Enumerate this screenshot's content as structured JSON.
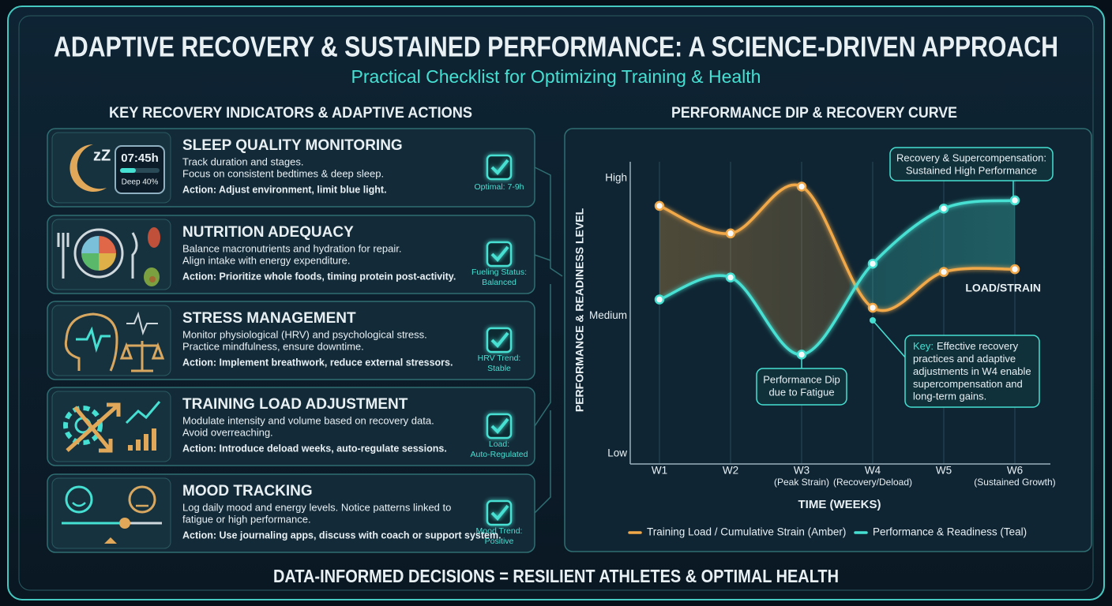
{
  "header": {
    "title": "ADAPTIVE RECOVERY & SUSTAINED PERFORMANCE: A SCIENCE-DRIVEN APPROACH",
    "subtitle": "Practical Checklist for Optimizing Training & Health"
  },
  "indicators": {
    "heading": "KEY RECOVERY INDICATORS & ADAPTIVE ACTIONS",
    "cards": [
      {
        "title": "SLEEP QUALITY MONITORING",
        "lines": [
          "Track duration and stages.",
          "Focus on consistent bedtimes & deep sleep."
        ],
        "action": "Action: Adjust environment, limit blue light.",
        "status": [
          "Optimal: 7-9h"
        ],
        "icon_texts": [
          "zZ",
          "07:45h",
          "Deep 40%"
        ]
      },
      {
        "title": "NUTRITION ADEQUACY",
        "lines": [
          "Balance macronutrients and hydration for repair.",
          "Align intake with energy expenditure."
        ],
        "action": "Action: Prioritize whole foods, timing protein post-activity.",
        "status": [
          "Fueling Status:",
          "Balanced"
        ]
      },
      {
        "title": "STRESS MANAGEMENT",
        "lines": [
          "Monitor physiological (HRV) and psychological stress.",
          "Practice mindfulness, ensure downtime."
        ],
        "action": "Action: Implement breathwork, reduce external stressors.",
        "status": [
          "HRV Trend:",
          "Stable"
        ]
      },
      {
        "title": "TRAINING LOAD ADJUSTMENT",
        "lines": [
          "Modulate intensity and volume based on recovery data.",
          "Avoid overreaching."
        ],
        "action": "Action: Introduce deload weeks, auto-regulate sessions.",
        "status": [
          "Load:",
          "Auto-Regulated"
        ]
      },
      {
        "title": "MOOD TRACKING",
        "lines": [
          "Log daily mood and energy levels. Notice patterns linked to",
          "fatigue or high performance."
        ],
        "action": "Action: Use journaling apps, discuss with coach or support system.",
        "status": [
          "Mood Trend:",
          "Positive"
        ]
      }
    ]
  },
  "chart_data": {
    "type": "line",
    "title": "PERFORMANCE DIP & RECOVERY CURVE",
    "x_label": "TIME (WEEKS)",
    "y_label": "PERFORMANCE & READINESS LEVEL",
    "categories": [
      "W1",
      "W2",
      "W3",
      "W4",
      "W5",
      "W6"
    ],
    "category_notes": [
      null,
      null,
      "(Peak Strain)",
      "(Recovery/Deload)",
      null,
      "(Sustained Growth)"
    ],
    "ylim": [
      0,
      10
    ],
    "yticks": [
      {
        "value": 0,
        "label": "Low"
      },
      {
        "value": 5,
        "label": "Medium"
      },
      {
        "value": 10,
        "label": "High"
      }
    ],
    "grid": "x",
    "series": [
      {
        "name": "Training Load / Cumulative Strain (Amber)",
        "color": "#f0a848",
        "values": [
          9.0,
          8.0,
          9.7,
          5.3,
          6.6,
          6.7
        ],
        "end_label": "LOAD/STRAIN"
      },
      {
        "name": "Performance & Readiness (Teal)",
        "color": "#46e0d2",
        "values": [
          5.6,
          6.4,
          3.6,
          6.9,
          8.9,
          9.2
        ]
      }
    ],
    "annotations": {
      "dip": [
        "Performance Dip",
        "due to Fatigue"
      ],
      "recovery": [
        "Recovery & Supercompensation:",
        "Sustained High Performance"
      ],
      "key": {
        "prefix": "Key:",
        "lines": [
          "Effective recovery",
          "practices and adaptive",
          "adjustments in W4 enable",
          "supercompensation and",
          "long-term gains."
        ]
      }
    }
  },
  "footer": "DATA-INFORMED DECISIONS = RESILIENT ATHLETES & OPTIMAL HEALTH"
}
